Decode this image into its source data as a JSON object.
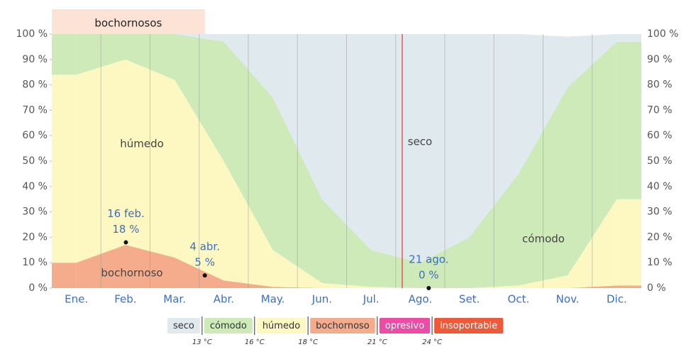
{
  "chart_data": {
    "type": "stacked_area",
    "categories": [
      "Ene.",
      "Feb.",
      "Mar.",
      "Abr.",
      "May.",
      "Jun.",
      "Jul.",
      "Ago.",
      "Set.",
      "Oct.",
      "Nov.",
      "Dic."
    ],
    "series": [
      {
        "name": "seco",
        "color": "#dfe9ee",
        "values": [
          0,
          0,
          0,
          3,
          25,
          65,
          85,
          90,
          80,
          55,
          20,
          3
        ]
      },
      {
        "name": "cómodo",
        "color": "#cdeab8",
        "values": [
          16,
          10,
          18,
          47,
          60,
          33,
          14.5,
          10,
          20,
          44,
          74,
          62
        ]
      },
      {
        "name": "húmedo",
        "color": "#fdf7c2",
        "values": [
          74,
          73,
          70,
          47,
          14.5,
          2,
          0.5,
          0,
          0,
          1,
          5,
          34
        ]
      },
      {
        "name": "bochornoso",
        "color": "#f4ac8c",
        "values": [
          10,
          17,
          12,
          3,
          0.5,
          0,
          0,
          0,
          0,
          0,
          0,
          1
        ]
      },
      {
        "name": "opresivo",
        "color": "#ee4ba7",
        "values": [
          0,
          0,
          0,
          0,
          0,
          0,
          0,
          0,
          0,
          0,
          0,
          0
        ]
      },
      {
        "name": "insoportable",
        "color": "#ec5a3a",
        "values": [
          0,
          0,
          0,
          0,
          0,
          0,
          0,
          0,
          0,
          0,
          0,
          0
        ]
      }
    ],
    "ylim": [
      0,
      100
    ],
    "yticks": [
      {
        "value": 0,
        "label": "0 %"
      },
      {
        "value": 10,
        "label": "10 %"
      },
      {
        "value": 20,
        "label": "20 %"
      },
      {
        "value": 30,
        "label": "30 %"
      },
      {
        "value": 40,
        "label": "40 %"
      },
      {
        "value": 50,
        "label": "50 %"
      },
      {
        "value": 60,
        "label": "60 %"
      },
      {
        "value": 70,
        "label": "70 %"
      },
      {
        "value": 80,
        "label": "80 %"
      },
      {
        "value": 90,
        "label": "90 %"
      },
      {
        "value": 100,
        "label": "100 %"
      }
    ],
    "annotations": [
      {
        "date": "16 feb.",
        "value": 18,
        "value_label": "18 %"
      },
      {
        "date": "4 abr.",
        "value": 5,
        "value_label": "5 %"
      },
      {
        "date": "21 ago.",
        "value": 0,
        "value_label": "0 %"
      }
    ],
    "highlight": "bochornosos",
    "legend_thresholds": [
      "13 °C",
      "16 °C",
      "18 °C",
      "21 °C",
      "24 °C"
    ]
  }
}
